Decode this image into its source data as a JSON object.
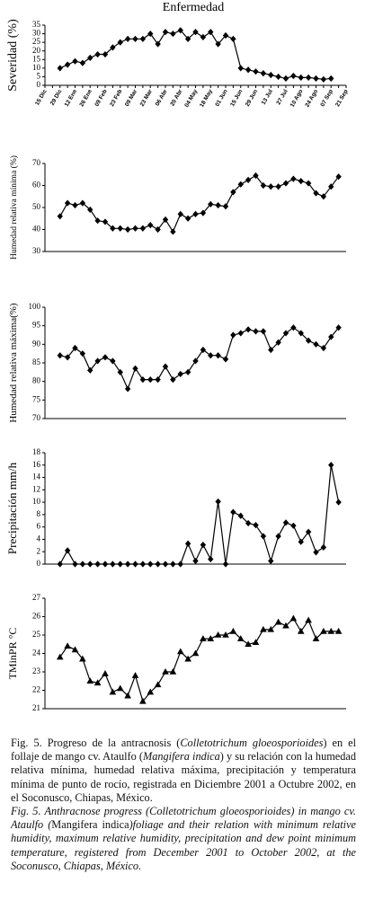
{
  "chart_data": [
    {
      "type": "line",
      "title": "Enfermedad",
      "y_label": "Severidad (%)",
      "marker": "diamond",
      "color": "#000000",
      "categories": [
        "15 Dic",
        null,
        "29 Dic",
        null,
        "12 Ene",
        null,
        "26 Ene",
        null,
        "09 Feb",
        null,
        "23 Feb",
        null,
        "09 Mar",
        null,
        "23 Mar",
        null,
        "06 Abr",
        null,
        "20 Abr",
        null,
        "04 May",
        null,
        "18 May",
        null,
        "01 Jun",
        null,
        "15 Jun",
        null,
        "29 Jun",
        null,
        "13 Jul",
        null,
        "27 Jul",
        null,
        "10 Ago",
        null,
        "24 Ago",
        null,
        "07 Sep",
        null,
        "21 Sep"
      ],
      "values": [
        null,
        null,
        10,
        12,
        14,
        13,
        16,
        18,
        18,
        22,
        25,
        27,
        27,
        27,
        30,
        24,
        31,
        30,
        32,
        27,
        31,
        28,
        31,
        24,
        29,
        27,
        10,
        9,
        8,
        7,
        6,
        5,
        4,
        5.5,
        4.5,
        4.5,
        4,
        3.5,
        4,
        null,
        null
      ],
      "ylim": [
        0,
        35
      ],
      "yticks": [
        0,
        5,
        10,
        15,
        20,
        25,
        30,
        35
      ]
    },
    {
      "type": "line",
      "y_label": "Humedad relativa mínima  (%)",
      "marker": "diamond",
      "color": "#000000",
      "values": [
        46,
        52,
        51,
        52,
        49,
        44,
        43.5,
        40.5,
        40.5,
        40,
        40.5,
        40.5,
        42,
        40,
        44.5,
        39,
        47,
        45,
        47,
        47.5,
        51.5,
        51,
        50.5,
        57,
        60.5,
        62.5,
        64.5,
        60,
        59.5,
        59.5,
        61,
        63,
        62,
        61,
        56.5,
        55,
        59.5,
        64
      ],
      "ylim": [
        30,
        70
      ],
      "yticks": [
        30,
        40,
        50,
        60,
        70
      ]
    },
    {
      "type": "line",
      "y_label": "Humedad relativa máxima(%)",
      "marker": "diamond",
      "color": "#000000",
      "values": [
        87,
        86.5,
        89,
        87.5,
        83,
        85.5,
        86.5,
        85.5,
        82.5,
        78,
        83.5,
        80.5,
        80.5,
        80.5,
        84,
        80.5,
        82,
        82.5,
        85.5,
        88.5,
        87,
        87,
        86,
        92.5,
        93,
        94,
        93.5,
        93.5,
        88.5,
        90.5,
        93,
        94.5,
        93,
        91,
        90,
        89,
        92,
        94.5
      ],
      "ylim": [
        70,
        100
      ],
      "yticks": [
        70,
        75,
        80,
        85,
        90,
        95,
        100
      ]
    },
    {
      "type": "line",
      "y_label": "Precipitación mm/h",
      "marker": "diamond",
      "color": "#000000",
      "values": [
        0,
        2.2,
        0,
        0,
        0,
        0,
        0,
        0,
        0,
        0,
        0,
        0,
        0,
        0,
        0,
        0,
        0,
        3.3,
        0.5,
        3.1,
        0.8,
        10.1,
        0,
        8.4,
        7.8,
        6.6,
        6.3,
        4.5,
        0.5,
        4.5,
        6.7,
        6.2,
        3.6,
        5.2,
        1.9,
        2.7,
        16,
        10
      ],
      "ylim": [
        0,
        18
      ],
      "yticks": [
        0,
        2,
        4,
        6,
        8,
        10,
        12,
        14,
        16,
        18
      ]
    },
    {
      "type": "line",
      "y_label": "TMinPR °C",
      "marker": "triangle",
      "color": "#000000",
      "values": [
        23.8,
        24.4,
        24.2,
        23.7,
        22.5,
        22.4,
        22.9,
        21.9,
        22.1,
        21.7,
        22.8,
        21.4,
        21.9,
        22.3,
        23,
        23,
        24.1,
        23.7,
        24,
        24.8,
        24.8,
        25,
        25,
        25.2,
        24.8,
        24.5,
        24.6,
        25.3,
        25.3,
        25.7,
        25.5,
        25.9,
        25.2,
        25.8,
        24.8,
        25.2,
        25.2,
        25.2
      ],
      "ylim": [
        21,
        27
      ],
      "yticks": [
        21,
        22,
        23,
        24,
        25,
        26,
        27
      ]
    }
  ],
  "caption": {
    "es": [
      "Fig. 5. Progreso de la antracnosis (",
      "Colletotrichum gloeosporioides",
      ") en el follaje de mango cv. Ataulfo (",
      "Mangifera indica",
      ") y su relación con la humedad relativa mínima, humedad relativa máxima, precipitación y temperatura mínima de punto de rocío, registrada en Diciembre 2001 a Octubre 2002, en el Soconusco, Chiapas, México."
    ],
    "en": [
      "Fig. 5. Anthracnose progress (Colletotrichum gloeosporioides) in mango cv. Ataulfo (",
      "Mangifera indica",
      ")foliage and their relation with minimum relative humidity, maximum relative humidity, precipitation and dew point minimum temperature, registered from December 2001 to October 2002, at the Soconusco, Chiapas, México."
    ]
  }
}
